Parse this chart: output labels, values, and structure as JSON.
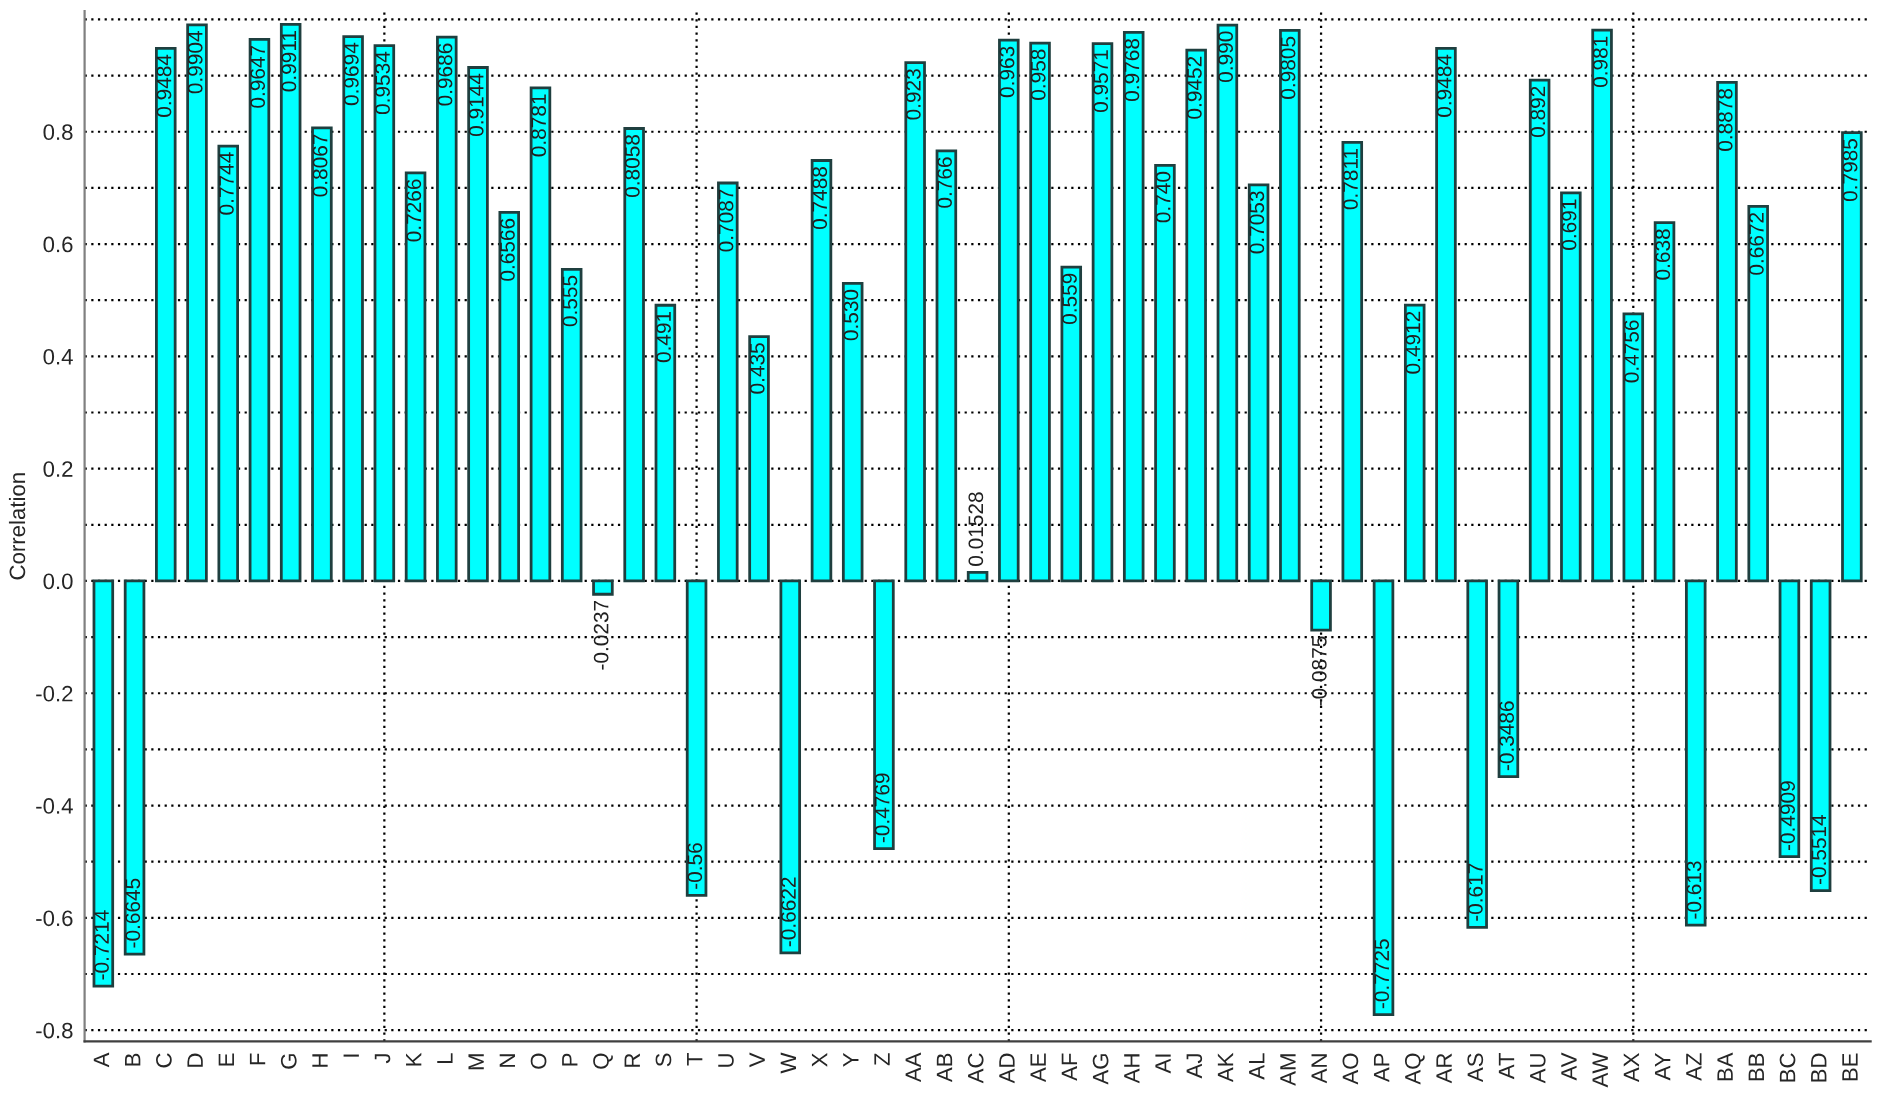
{
  "chart_data": {
    "type": "bar",
    "ylabel": "Correlation",
    "categories": [
      "A",
      "B",
      "C",
      "D",
      "E",
      "F",
      "G",
      "H",
      "I",
      "J",
      "K",
      "L",
      "M",
      "N",
      "O",
      "P",
      "Q",
      "R",
      "S",
      "T",
      "U",
      "V",
      "W",
      "X",
      "Y",
      "Z",
      "AA",
      "AB",
      "AC",
      "AD",
      "AE",
      "AF",
      "AG",
      "AH",
      "AI",
      "AJ",
      "AK",
      "AL",
      "AM",
      "AN",
      "AO",
      "AP",
      "AQ",
      "AR",
      "AS",
      "AT",
      "AU",
      "AV",
      "AW",
      "AX",
      "AY",
      "AZ",
      "BA",
      "BB",
      "BC",
      "BD",
      "BE"
    ],
    "values": [
      -0.7214,
      -0.6645,
      0.9484,
      0.9904,
      0.7744,
      0.9647,
      0.9911,
      0.8067,
      0.9694,
      0.9534,
      0.7266,
      0.9686,
      0.9144,
      0.6566,
      0.8781,
      0.555,
      -0.0237,
      0.8058,
      0.491,
      -0.56,
      0.7087,
      0.435,
      -0.6622,
      0.7488,
      0.53,
      -0.4769,
      0.923,
      0.766,
      0.01528,
      0.963,
      0.958,
      0.559,
      0.9571,
      0.9768,
      0.74,
      0.9452,
      0.99,
      0.7053,
      0.9805,
      -0.0875,
      0.7811,
      -0.7725,
      0.4912,
      0.9484,
      -0.617,
      -0.3486,
      0.892,
      0.691,
      0.981,
      0.4756,
      0.638,
      -0.613,
      0.8878,
      0.6672,
      -0.4909,
      -0.5514,
      0.7985
    ],
    "value_labels": [
      "-0.7214",
      "-0.6645",
      "0.9484",
      "0.9904",
      "0.7744",
      "0.9647",
      "0.9911",
      "0.8067",
      "0.9694",
      "0.9534",
      "0.7266",
      "0.9686",
      "0.9144",
      "0.6566",
      "0.8781",
      "0.555",
      "-0.0237",
      "0.8058",
      "0.491",
      "-0.56",
      "0.7087",
      "0.435",
      "-0.6622",
      "0.7488",
      "0.530",
      "-0.4769",
      "0.923",
      "0.766",
      "0.01528",
      "0.963",
      "0.958",
      "0.559",
      "0.9571",
      "0.9768",
      "0.740",
      "0.9452",
      "0.990",
      "0.7053",
      "0.9805",
      "-0.0875",
      "0.7811",
      "-0.7725",
      "0.4912",
      "0.9484",
      "-0.617",
      "-0.3486",
      "0.892",
      "0.691",
      "0.981",
      "0.4756",
      "0.638",
      "-0.613",
      "0.8878",
      "0.6672",
      "-0.4909",
      "-0.5514",
      "0.7985"
    ],
    "color": "#00ffff",
    "ylim": [
      -0.82,
      1.015
    ],
    "yticks": [
      {
        "value": -0.8,
        "label": "-0.8"
      },
      {
        "value": -0.7,
        "label": null
      },
      {
        "value": -0.6,
        "label": "-0.6"
      },
      {
        "value": -0.5,
        "label": null
      },
      {
        "value": -0.4,
        "label": "-0.4"
      },
      {
        "value": -0.3,
        "label": null
      },
      {
        "value": -0.2,
        "label": "-0.2"
      },
      {
        "value": -0.1,
        "label": null
      },
      {
        "value": 0,
        "label": "0.0"
      },
      {
        "value": 0.1,
        "label": null
      },
      {
        "value": 0.2,
        "label": "0.2"
      },
      {
        "value": 0.3,
        "label": null
      },
      {
        "value": 0.4,
        "label": "0.4"
      },
      {
        "value": 0.5,
        "label": null
      },
      {
        "value": 0.6,
        "label": "0.6"
      },
      {
        "value": 0.7,
        "label": null
      },
      {
        "value": 0.8,
        "label": "0.8"
      },
      {
        "value": 0.9,
        "label": null
      },
      {
        "value": 1.0,
        "label": null
      }
    ],
    "grid": true
  }
}
